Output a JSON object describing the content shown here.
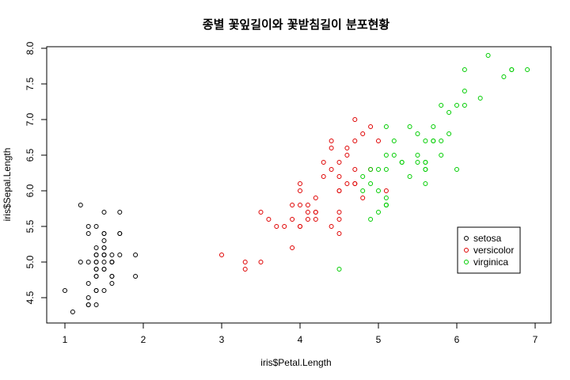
{
  "chart_data": {
    "type": "scatter",
    "title": "종별 꽃잎길이와 꽃받침길이 분포현황",
    "xlabel": "iris$Petal.Length",
    "ylabel": "iris$Sepal.Length",
    "xlim": [
      1,
      7
    ],
    "ylim": [
      4.5,
      8.0
    ],
    "x_ticks": [
      "1",
      "2",
      "3",
      "4",
      "5",
      "6",
      "7"
    ],
    "y_ticks": [
      "4.5",
      "5.0",
      "5.5",
      "6.0",
      "6.5",
      "7.0",
      "7.5",
      "8.0"
    ],
    "grid": false,
    "legend_position": "right",
    "series": [
      {
        "name": "setosa",
        "color": "#000000",
        "points": [
          [
            1.4,
            5.1
          ],
          [
            1.4,
            4.9
          ],
          [
            1.3,
            4.7
          ],
          [
            1.5,
            4.6
          ],
          [
            1.4,
            5.0
          ],
          [
            1.7,
            5.4
          ],
          [
            1.4,
            4.6
          ],
          [
            1.5,
            5.0
          ],
          [
            1.4,
            4.4
          ],
          [
            1.5,
            4.9
          ],
          [
            1.5,
            5.4
          ],
          [
            1.6,
            4.8
          ],
          [
            1.4,
            4.8
          ],
          [
            1.1,
            4.3
          ],
          [
            1.2,
            5.8
          ],
          [
            1.5,
            5.7
          ],
          [
            1.3,
            5.4
          ],
          [
            1.4,
            5.1
          ],
          [
            1.7,
            5.7
          ],
          [
            1.5,
            5.1
          ],
          [
            1.7,
            5.4
          ],
          [
            1.5,
            5.1
          ],
          [
            1.0,
            4.6
          ],
          [
            1.7,
            5.1
          ],
          [
            1.9,
            4.8
          ],
          [
            1.6,
            5.0
          ],
          [
            1.6,
            5.0
          ],
          [
            1.5,
            5.2
          ],
          [
            1.4,
            5.2
          ],
          [
            1.6,
            4.7
          ],
          [
            1.6,
            4.8
          ],
          [
            1.5,
            5.4
          ],
          [
            1.5,
            5.2
          ],
          [
            1.4,
            5.5
          ],
          [
            1.5,
            4.9
          ],
          [
            1.2,
            5.0
          ],
          [
            1.3,
            5.5
          ],
          [
            1.4,
            4.9
          ],
          [
            1.3,
            4.4
          ],
          [
            1.5,
            5.1
          ],
          [
            1.3,
            5.0
          ],
          [
            1.3,
            4.5
          ],
          [
            1.3,
            4.4
          ],
          [
            1.6,
            5.0
          ],
          [
            1.9,
            5.1
          ],
          [
            1.4,
            4.8
          ],
          [
            1.6,
            5.1
          ],
          [
            1.4,
            4.6
          ],
          [
            1.5,
            5.3
          ],
          [
            1.4,
            5.0
          ]
        ]
      },
      {
        "name": "versicolor",
        "color": "#df0000",
        "points": [
          [
            4.7,
            7.0
          ],
          [
            4.5,
            6.4
          ],
          [
            4.9,
            6.9
          ],
          [
            4.0,
            5.5
          ],
          [
            4.6,
            6.5
          ],
          [
            4.5,
            5.7
          ],
          [
            4.7,
            6.3
          ],
          [
            3.3,
            4.9
          ],
          [
            4.6,
            6.6
          ],
          [
            3.9,
            5.2
          ],
          [
            3.5,
            5.0
          ],
          [
            4.2,
            5.9
          ],
          [
            4.0,
            6.0
          ],
          [
            4.7,
            6.1
          ],
          [
            3.6,
            5.6
          ],
          [
            4.4,
            6.7
          ],
          [
            4.5,
            5.6
          ],
          [
            4.1,
            5.8
          ],
          [
            4.5,
            6.2
          ],
          [
            3.9,
            5.6
          ],
          [
            4.8,
            5.9
          ],
          [
            4.0,
            6.1
          ],
          [
            4.9,
            6.3
          ],
          [
            4.7,
            6.1
          ],
          [
            4.3,
            6.4
          ],
          [
            4.4,
            6.6
          ],
          [
            4.8,
            6.8
          ],
          [
            5.0,
            6.7
          ],
          [
            4.5,
            6.0
          ],
          [
            3.5,
            5.7
          ],
          [
            3.8,
            5.5
          ],
          [
            3.7,
            5.5
          ],
          [
            3.9,
            5.8
          ],
          [
            5.1,
            6.0
          ],
          [
            4.5,
            5.4
          ],
          [
            4.5,
            6.0
          ],
          [
            4.7,
            6.7
          ],
          [
            4.4,
            6.3
          ],
          [
            4.1,
            5.6
          ],
          [
            4.0,
            5.5
          ],
          [
            4.4,
            5.5
          ],
          [
            4.6,
            6.1
          ],
          [
            4.0,
            5.8
          ],
          [
            3.3,
            5.0
          ],
          [
            4.2,
            5.6
          ],
          [
            4.2,
            5.7
          ],
          [
            4.2,
            5.7
          ],
          [
            4.3,
            6.2
          ],
          [
            3.0,
            5.1
          ],
          [
            4.1,
            5.7
          ]
        ]
      },
      {
        "name": "virginica",
        "color": "#00cd00",
        "points": [
          [
            6.0,
            6.3
          ],
          [
            5.1,
            5.8
          ],
          [
            5.9,
            7.1
          ],
          [
            5.6,
            6.3
          ],
          [
            5.8,
            6.5
          ],
          [
            6.6,
            7.6
          ],
          [
            4.5,
            4.9
          ],
          [
            6.3,
            7.3
          ],
          [
            5.8,
            6.7
          ],
          [
            6.1,
            7.2
          ],
          [
            5.1,
            6.5
          ],
          [
            5.3,
            6.4
          ],
          [
            5.5,
            6.8
          ],
          [
            5.0,
            5.7
          ],
          [
            5.1,
            5.8
          ],
          [
            5.3,
            6.4
          ],
          [
            5.5,
            6.5
          ],
          [
            6.7,
            7.7
          ],
          [
            6.9,
            7.7
          ],
          [
            5.0,
            6.0
          ],
          [
            5.7,
            6.9
          ],
          [
            4.9,
            5.6
          ],
          [
            6.7,
            7.7
          ],
          [
            4.9,
            6.3
          ],
          [
            5.7,
            6.7
          ],
          [
            6.0,
            7.2
          ],
          [
            4.8,
            6.2
          ],
          [
            4.9,
            6.1
          ],
          [
            5.6,
            6.4
          ],
          [
            5.8,
            7.2
          ],
          [
            6.1,
            7.4
          ],
          [
            6.4,
            7.9
          ],
          [
            5.6,
            6.4
          ],
          [
            5.1,
            6.3
          ],
          [
            5.6,
            6.1
          ],
          [
            6.1,
            7.7
          ],
          [
            5.6,
            6.3
          ],
          [
            5.5,
            6.4
          ],
          [
            4.8,
            6.0
          ],
          [
            5.4,
            6.9
          ],
          [
            5.6,
            6.7
          ],
          [
            5.1,
            6.9
          ],
          [
            5.1,
            5.8
          ],
          [
            5.9,
            6.8
          ],
          [
            5.7,
            6.7
          ],
          [
            5.2,
            6.7
          ],
          [
            5.0,
            6.3
          ],
          [
            5.2,
            6.5
          ],
          [
            5.4,
            6.2
          ],
          [
            5.1,
            5.9
          ]
        ]
      }
    ]
  }
}
